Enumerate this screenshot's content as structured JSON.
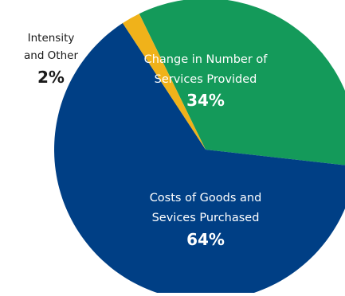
{
  "chart_data": {
    "type": "pie",
    "title": "",
    "slices": [
      {
        "label_lines": [
          "Change in Number of",
          "Services Provided"
        ],
        "value": 34,
        "value_text": "34%",
        "color": "#149a5a",
        "label_color": "#ffffff",
        "label_position": "inside"
      },
      {
        "label_lines": [
          "Costs of Goods and",
          "Sevices Purchased"
        ],
        "value": 64,
        "value_text": "64%",
        "color": "#003f85",
        "label_color": "#ffffff",
        "label_position": "inside"
      },
      {
        "label_lines": [
          "Intensity",
          "and Other"
        ],
        "value": 2,
        "value_text": "2%",
        "color": "#f0b21a",
        "label_color": "#1a1a1a",
        "label_position": "outside"
      }
    ]
  }
}
